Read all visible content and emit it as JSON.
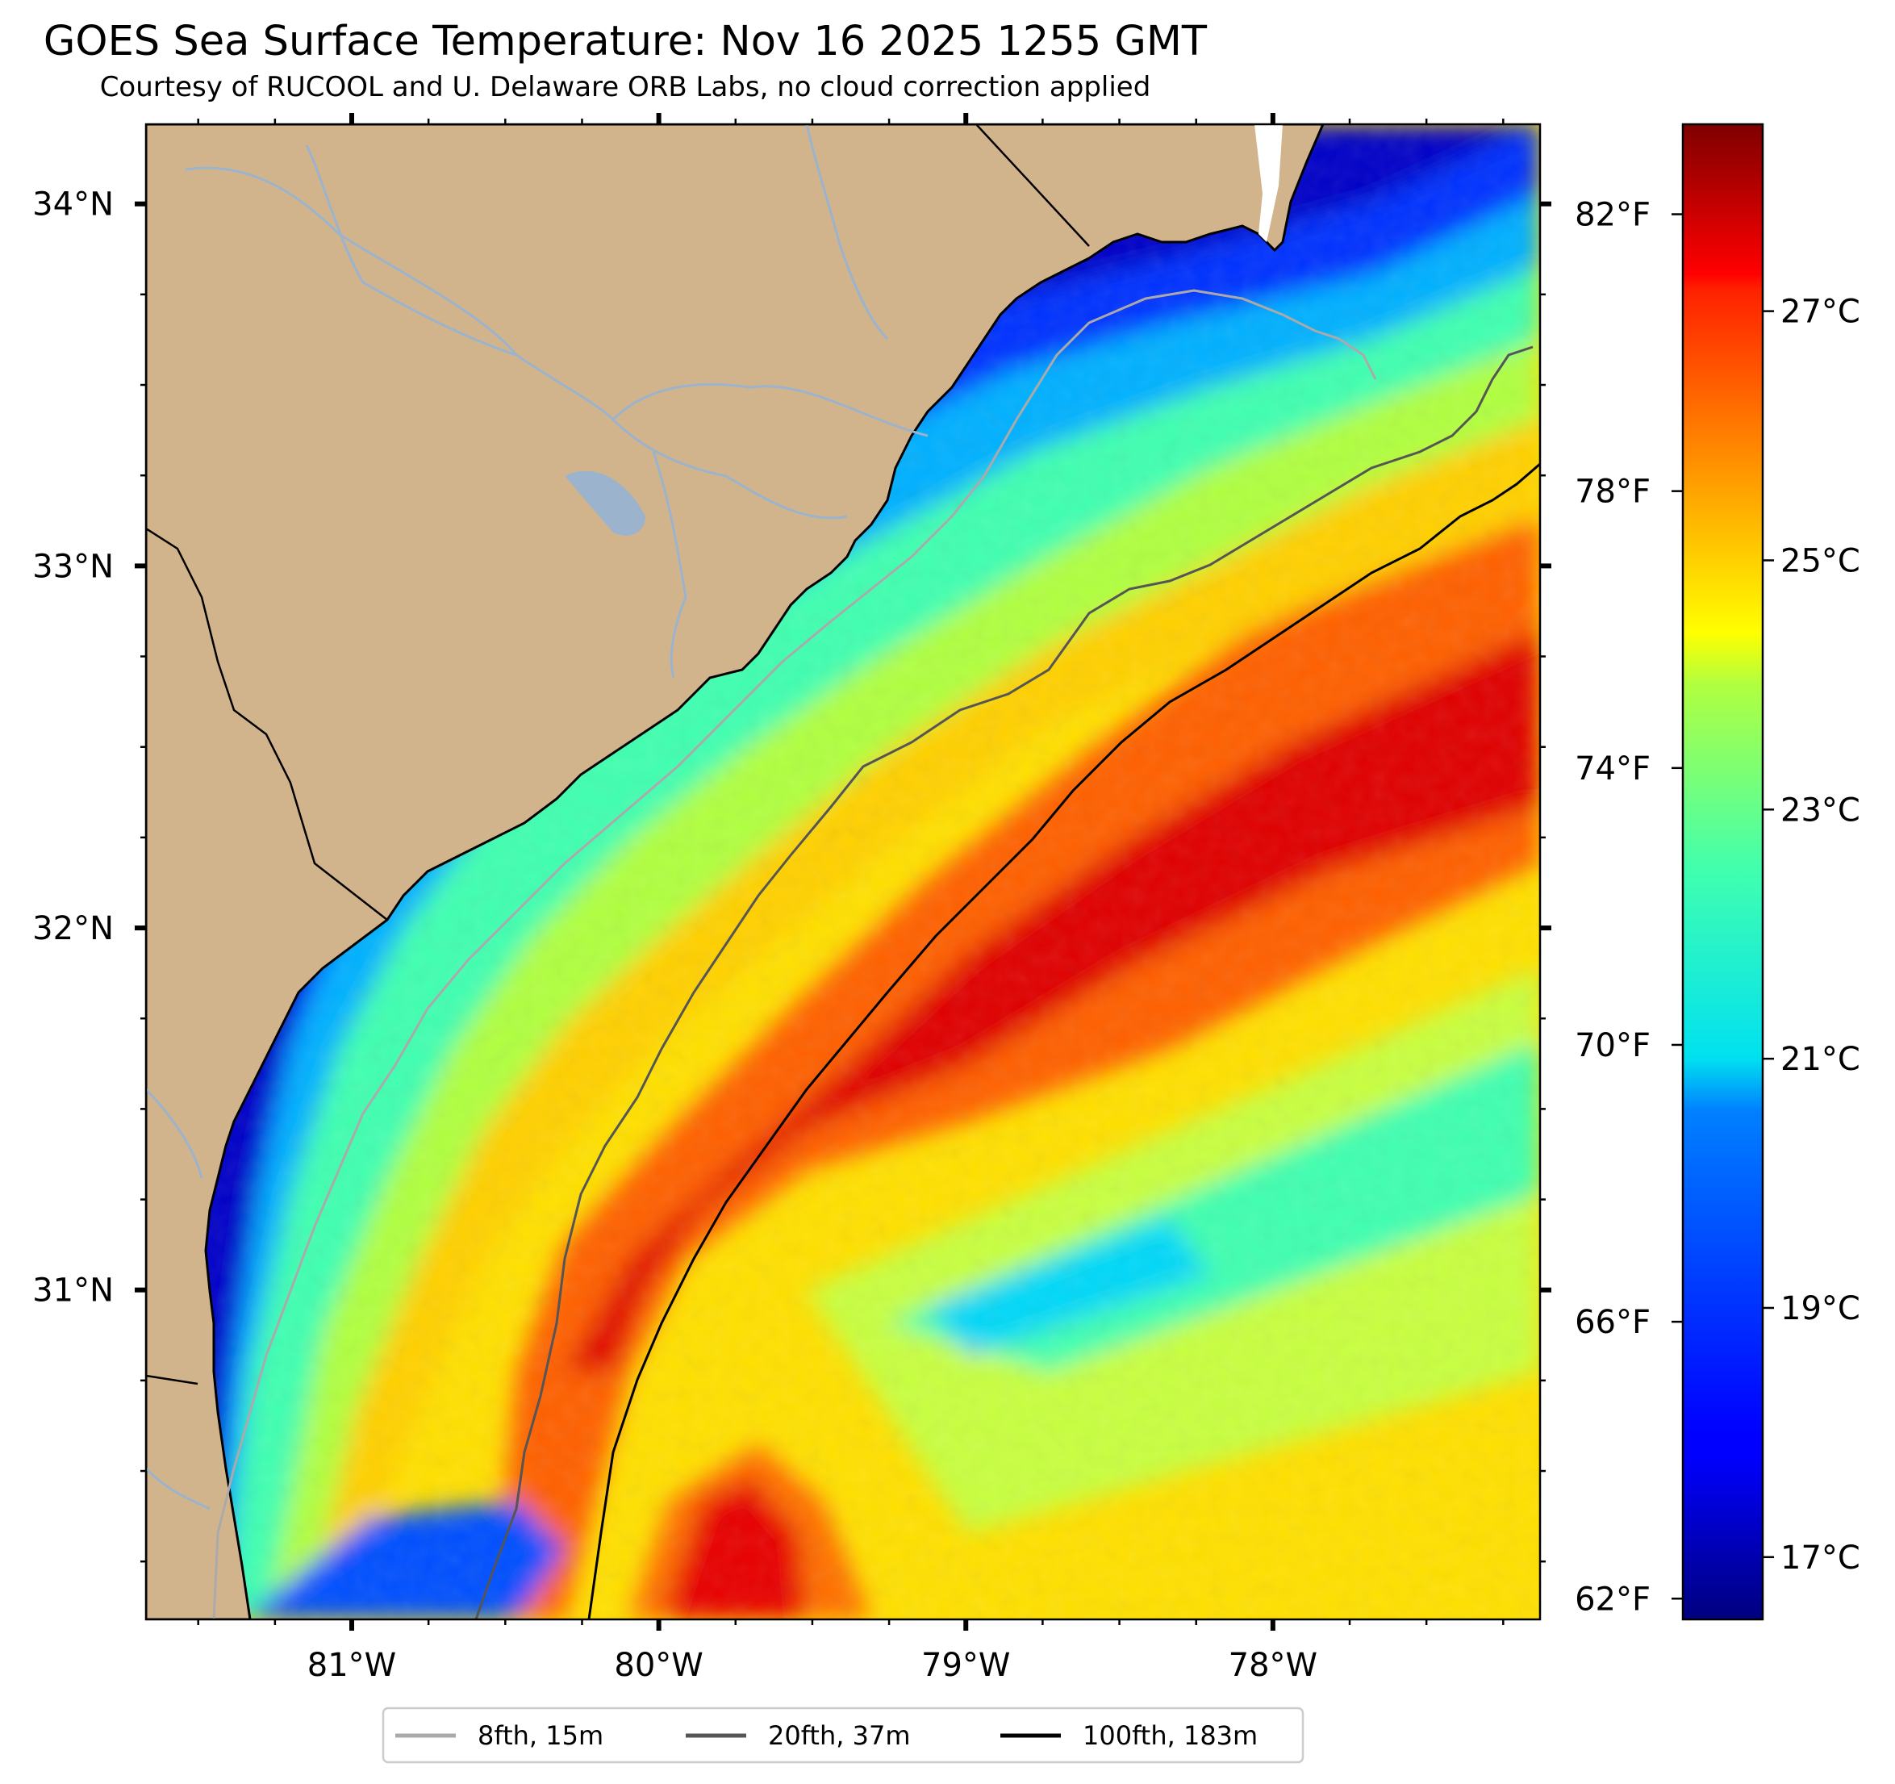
{
  "title": "GOES Sea Surface Temperature: Nov 16 2025 1255 GMT",
  "subtitle": "Courtesy of RUCOOL and U. Delaware ORB Labs, no cloud correction applied",
  "map": {
    "lon_range": [
      -81.67,
      -77.13
    ],
    "lat_range": [
      30.09,
      34.22
    ],
    "land_color": "#d2b48c",
    "lon_ticks": [
      {
        "value": -81,
        "label": "81°W"
      },
      {
        "value": -80,
        "label": "80°W"
      },
      {
        "value": -79,
        "label": "79°W"
      },
      {
        "value": -78,
        "label": "78°W"
      }
    ],
    "lat_ticks": [
      {
        "value": 34,
        "label": "34°N"
      },
      {
        "value": 33,
        "label": "33°N"
      },
      {
        "value": 32,
        "label": "32°N"
      },
      {
        "value": 31,
        "label": "31°N"
      }
    ]
  },
  "colorbar": {
    "colormap": "jet",
    "celsius_range": [
      16.5,
      28.5
    ],
    "celsius_ticks": [
      {
        "value": 17,
        "label": "17°C"
      },
      {
        "value": 19,
        "label": "19°C"
      },
      {
        "value": 21,
        "label": "21°C"
      },
      {
        "value": 23,
        "label": "23°C"
      },
      {
        "value": 25,
        "label": "25°C"
      },
      {
        "value": 27,
        "label": "27°C"
      }
    ],
    "fahrenheit_ticks": [
      {
        "value": 62,
        "label": "62°F"
      },
      {
        "value": 66,
        "label": "66°F"
      },
      {
        "value": 70,
        "label": "70°F"
      },
      {
        "value": 74,
        "label": "74°F"
      },
      {
        "value": 78,
        "label": "78°F"
      },
      {
        "value": 82,
        "label": "82°F"
      }
    ]
  },
  "legend": {
    "items": [
      {
        "label": "8fth, 15m",
        "color": "#aaaaaa"
      },
      {
        "label": "20fth, 37m",
        "color": "#555555"
      },
      {
        "label": "100fth, 183m",
        "color": "#000000"
      }
    ]
  }
}
